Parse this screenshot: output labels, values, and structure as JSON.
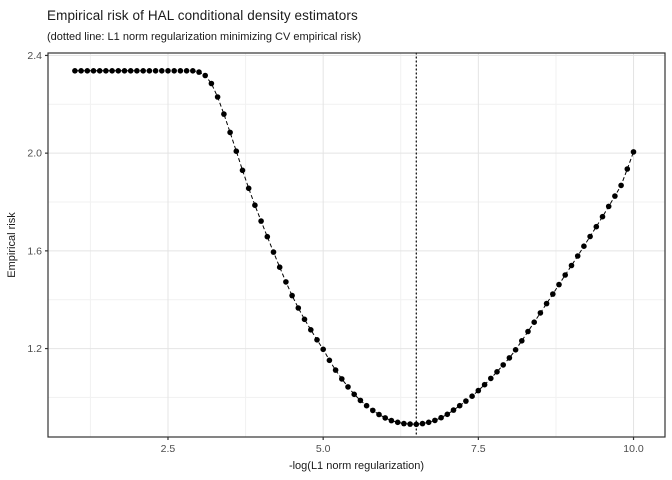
{
  "header": {
    "title": "Empirical risk of HAL conditional density estimators",
    "subtitle": "(dotted line: L1 norm regularization minimizing CV empirical risk)"
  },
  "style": {
    "point_color": "#000000",
    "line_color": "#000000",
    "vline_color": "#000000",
    "grid_major_color": "#e4e4e4",
    "grid_minor_color": "#f1f1f1",
    "panel_border_color": "#333333",
    "tick_color": "#333333",
    "tick_label_color": "#4d4d4d",
    "axis_title_color": "#1a1a1a",
    "background": "#ffffff"
  },
  "chart_data": {
    "type": "scatter",
    "title": "Empirical risk of HAL conditional density estimators",
    "subtitle": "(dotted line: L1 norm regularization minimizing CV empirical risk)",
    "xlabel": "-log(L1 norm regularization)",
    "ylabel": "Empirical risk",
    "legend": "none",
    "grid": true,
    "line_style": "dashed",
    "vline_style": "dotted",
    "vline_x": 6.5,
    "xlim": [
      0.567,
      10.507
    ],
    "ylim": [
      0.838,
      2.41
    ],
    "x_ticks": [
      2.5,
      5.0,
      7.5,
      10.0
    ],
    "x_tick_labels": [
      "2.5",
      "5.0",
      "7.5",
      "10.0"
    ],
    "x_minor_ticks": [
      1.25,
      3.75,
      6.25,
      8.75
    ],
    "y_ticks": [
      1.2,
      1.6,
      2.0,
      2.4
    ],
    "y_tick_labels": [
      "1.2",
      "1.6",
      "2.0",
      "2.4"
    ],
    "y_minor_ticks": [
      1.0,
      1.4,
      1.8,
      2.2
    ],
    "x": [
      1.0,
      1.1,
      1.2,
      1.3,
      1.4,
      1.5,
      1.6,
      1.7,
      1.8,
      1.9,
      2.0,
      2.1,
      2.2,
      2.3,
      2.4,
      2.5,
      2.6,
      2.7,
      2.8,
      2.9,
      3.0,
      3.1,
      3.2,
      3.3,
      3.4,
      3.5,
      3.6,
      3.7,
      3.8,
      3.9,
      4.0,
      4.1,
      4.2,
      4.3,
      4.4,
      4.5,
      4.6,
      4.7,
      4.8,
      4.9,
      5.0,
      5.1,
      5.2,
      5.3,
      5.4,
      5.5,
      5.6,
      5.7,
      5.8,
      5.9,
      6.0,
      6.1,
      6.2,
      6.3,
      6.4,
      6.5,
      6.6,
      6.7,
      6.8,
      6.9,
      7.0,
      7.1,
      7.2,
      7.3,
      7.4,
      7.5,
      7.6,
      7.7,
      7.8,
      7.9,
      8.0,
      8.1,
      8.2,
      8.3,
      8.4,
      8.5,
      8.6,
      8.7,
      8.8,
      8.9,
      9.0,
      9.1,
      9.2,
      9.3,
      9.4,
      9.5,
      9.6,
      9.7,
      9.8,
      9.9,
      10.0
    ],
    "y": [
      2.337,
      2.337,
      2.337,
      2.337,
      2.337,
      2.337,
      2.337,
      2.337,
      2.337,
      2.337,
      2.337,
      2.337,
      2.337,
      2.337,
      2.337,
      2.337,
      2.337,
      2.337,
      2.337,
      2.337,
      2.332,
      2.318,
      2.285,
      2.23,
      2.16,
      2.085,
      2.008,
      1.93,
      1.856,
      1.787,
      1.722,
      1.658,
      1.595,
      1.533,
      1.473,
      1.417,
      1.366,
      1.32,
      1.277,
      1.236,
      1.197,
      1.152,
      1.112,
      1.076,
      1.043,
      1.013,
      0.988,
      0.966,
      0.947,
      0.93,
      0.916,
      0.905,
      0.898,
      0.893,
      0.891,
      0.89,
      0.893,
      0.898,
      0.906,
      0.917,
      0.931,
      0.948,
      0.966,
      0.985,
      1.005,
      1.028,
      1.052,
      1.078,
      1.105,
      1.133,
      1.162,
      1.195,
      1.232,
      1.27,
      1.308,
      1.346,
      1.384,
      1.423,
      1.462,
      1.501,
      1.54,
      1.579,
      1.619,
      1.659,
      1.699,
      1.74,
      1.782,
      1.824,
      1.868,
      1.935,
      2.005
    ]
  }
}
